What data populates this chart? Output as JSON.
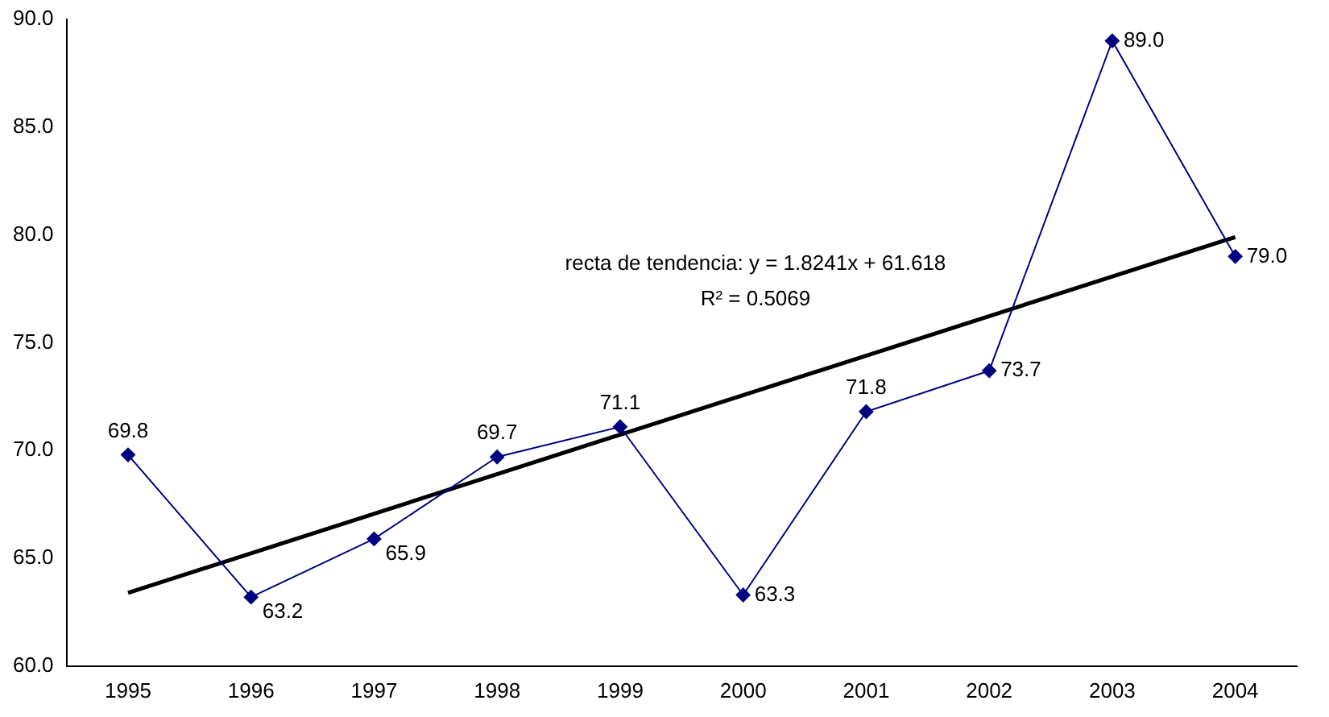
{
  "chart_data": {
    "type": "line",
    "categories": [
      "1995",
      "1996",
      "1997",
      "1998",
      "1999",
      "2000",
      "2001",
      "2002",
      "2003",
      "2004"
    ],
    "series": [
      {
        "color": "#000080",
        "values": [
          69.8,
          63.2,
          65.9,
          69.7,
          71.1,
          63.3,
          71.8,
          73.7,
          89.0,
          79.0
        ],
        "marker": "diamond",
        "value_labels": [
          "69.8",
          "63.2",
          "65.9",
          "69.7",
          "71.1",
          "63.3",
          "71.8",
          "73.7",
          "89.0",
          "79.0"
        ]
      },
      {
        "type": "line",
        "color": "#000000",
        "values": [
          63.4,
          null,
          null,
          null,
          null,
          null,
          null,
          null,
          null,
          79.9
        ],
        "marker": "none"
      }
    ],
    "ylim": [
      60,
      90
    ],
    "yticks": [
      {
        "value": 60,
        "label": "60.0"
      },
      {
        "value": 65,
        "label": "65.0"
      },
      {
        "value": 70,
        "label": "70.0"
      },
      {
        "value": 75,
        "label": "75.0"
      },
      {
        "value": 80,
        "label": "80.0"
      },
      {
        "value": 85,
        "label": "85.0"
      },
      {
        "value": 90,
        "label": "90.0"
      }
    ],
    "grid": false,
    "legend": false,
    "annotations": [
      "recta de tendencia: y = 1.8241x + 61.618",
      "R² = 0.5069"
    ]
  }
}
